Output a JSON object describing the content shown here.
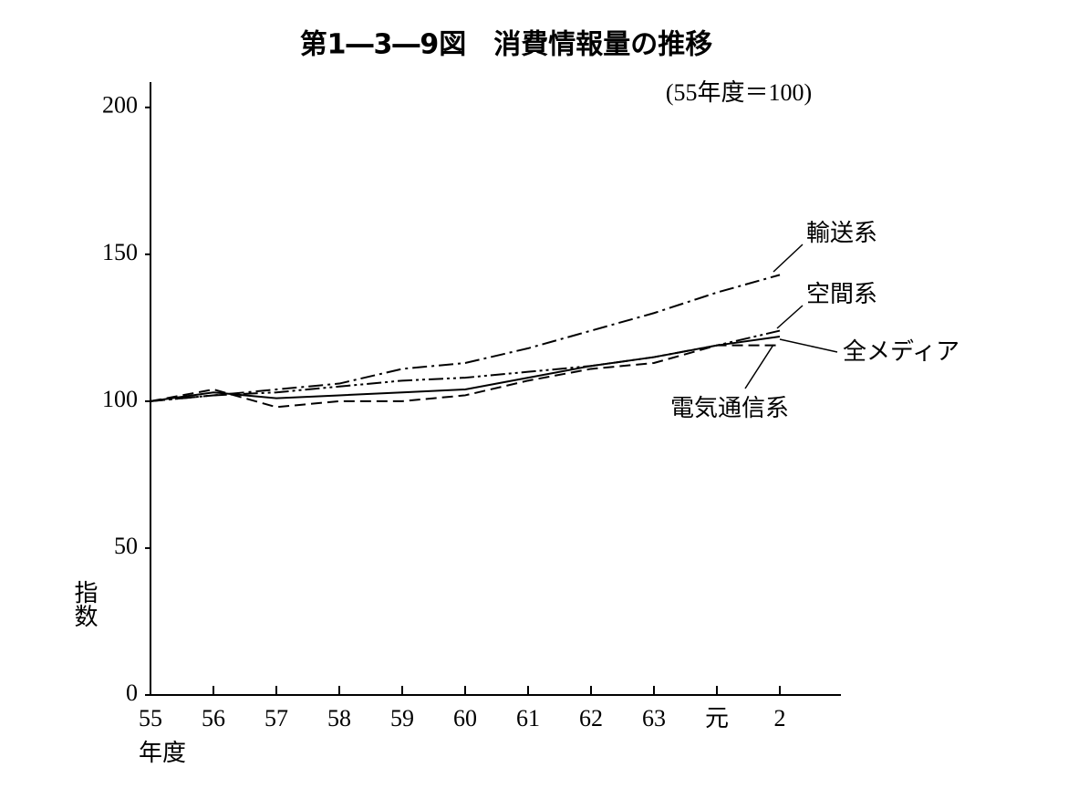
{
  "chart_data": {
    "type": "line",
    "title": "第1―3―9図　消費情報量の推移",
    "subtitle": "(55年度＝100)",
    "y_label": "指数",
    "x_label": "年度",
    "categories": [
      "55",
      "56",
      "57",
      "58",
      "59",
      "60",
      "61",
      "62",
      "63",
      "元",
      "2"
    ],
    "ylim": [
      0,
      208
    ],
    "yticks": [
      0,
      50,
      100,
      150,
      200
    ],
    "grid": false,
    "series": [
      {
        "name": "輸送系",
        "color": "#000000",
        "linestyle": "dash-dot",
        "values": [
          100,
          102,
          104,
          106,
          111,
          113,
          118,
          124,
          130,
          137,
          143
        ]
      },
      {
        "name": "空間系",
        "color": "#000000",
        "linestyle": "dash-dot-dot",
        "values": [
          100,
          102,
          103,
          105,
          107,
          108,
          110,
          112,
          115,
          119,
          124
        ]
      },
      {
        "name": "全メディア",
        "color": "#000000",
        "linestyle": "solid",
        "values": [
          100,
          103,
          101,
          102,
          103,
          104,
          108,
          112,
          115,
          119,
          122
        ]
      },
      {
        "name": "電気通信系",
        "color": "#000000",
        "linestyle": "dashed",
        "values": [
          100,
          104,
          98,
          100,
          100,
          102,
          107,
          111,
          113,
          119,
          119
        ]
      }
    ]
  }
}
